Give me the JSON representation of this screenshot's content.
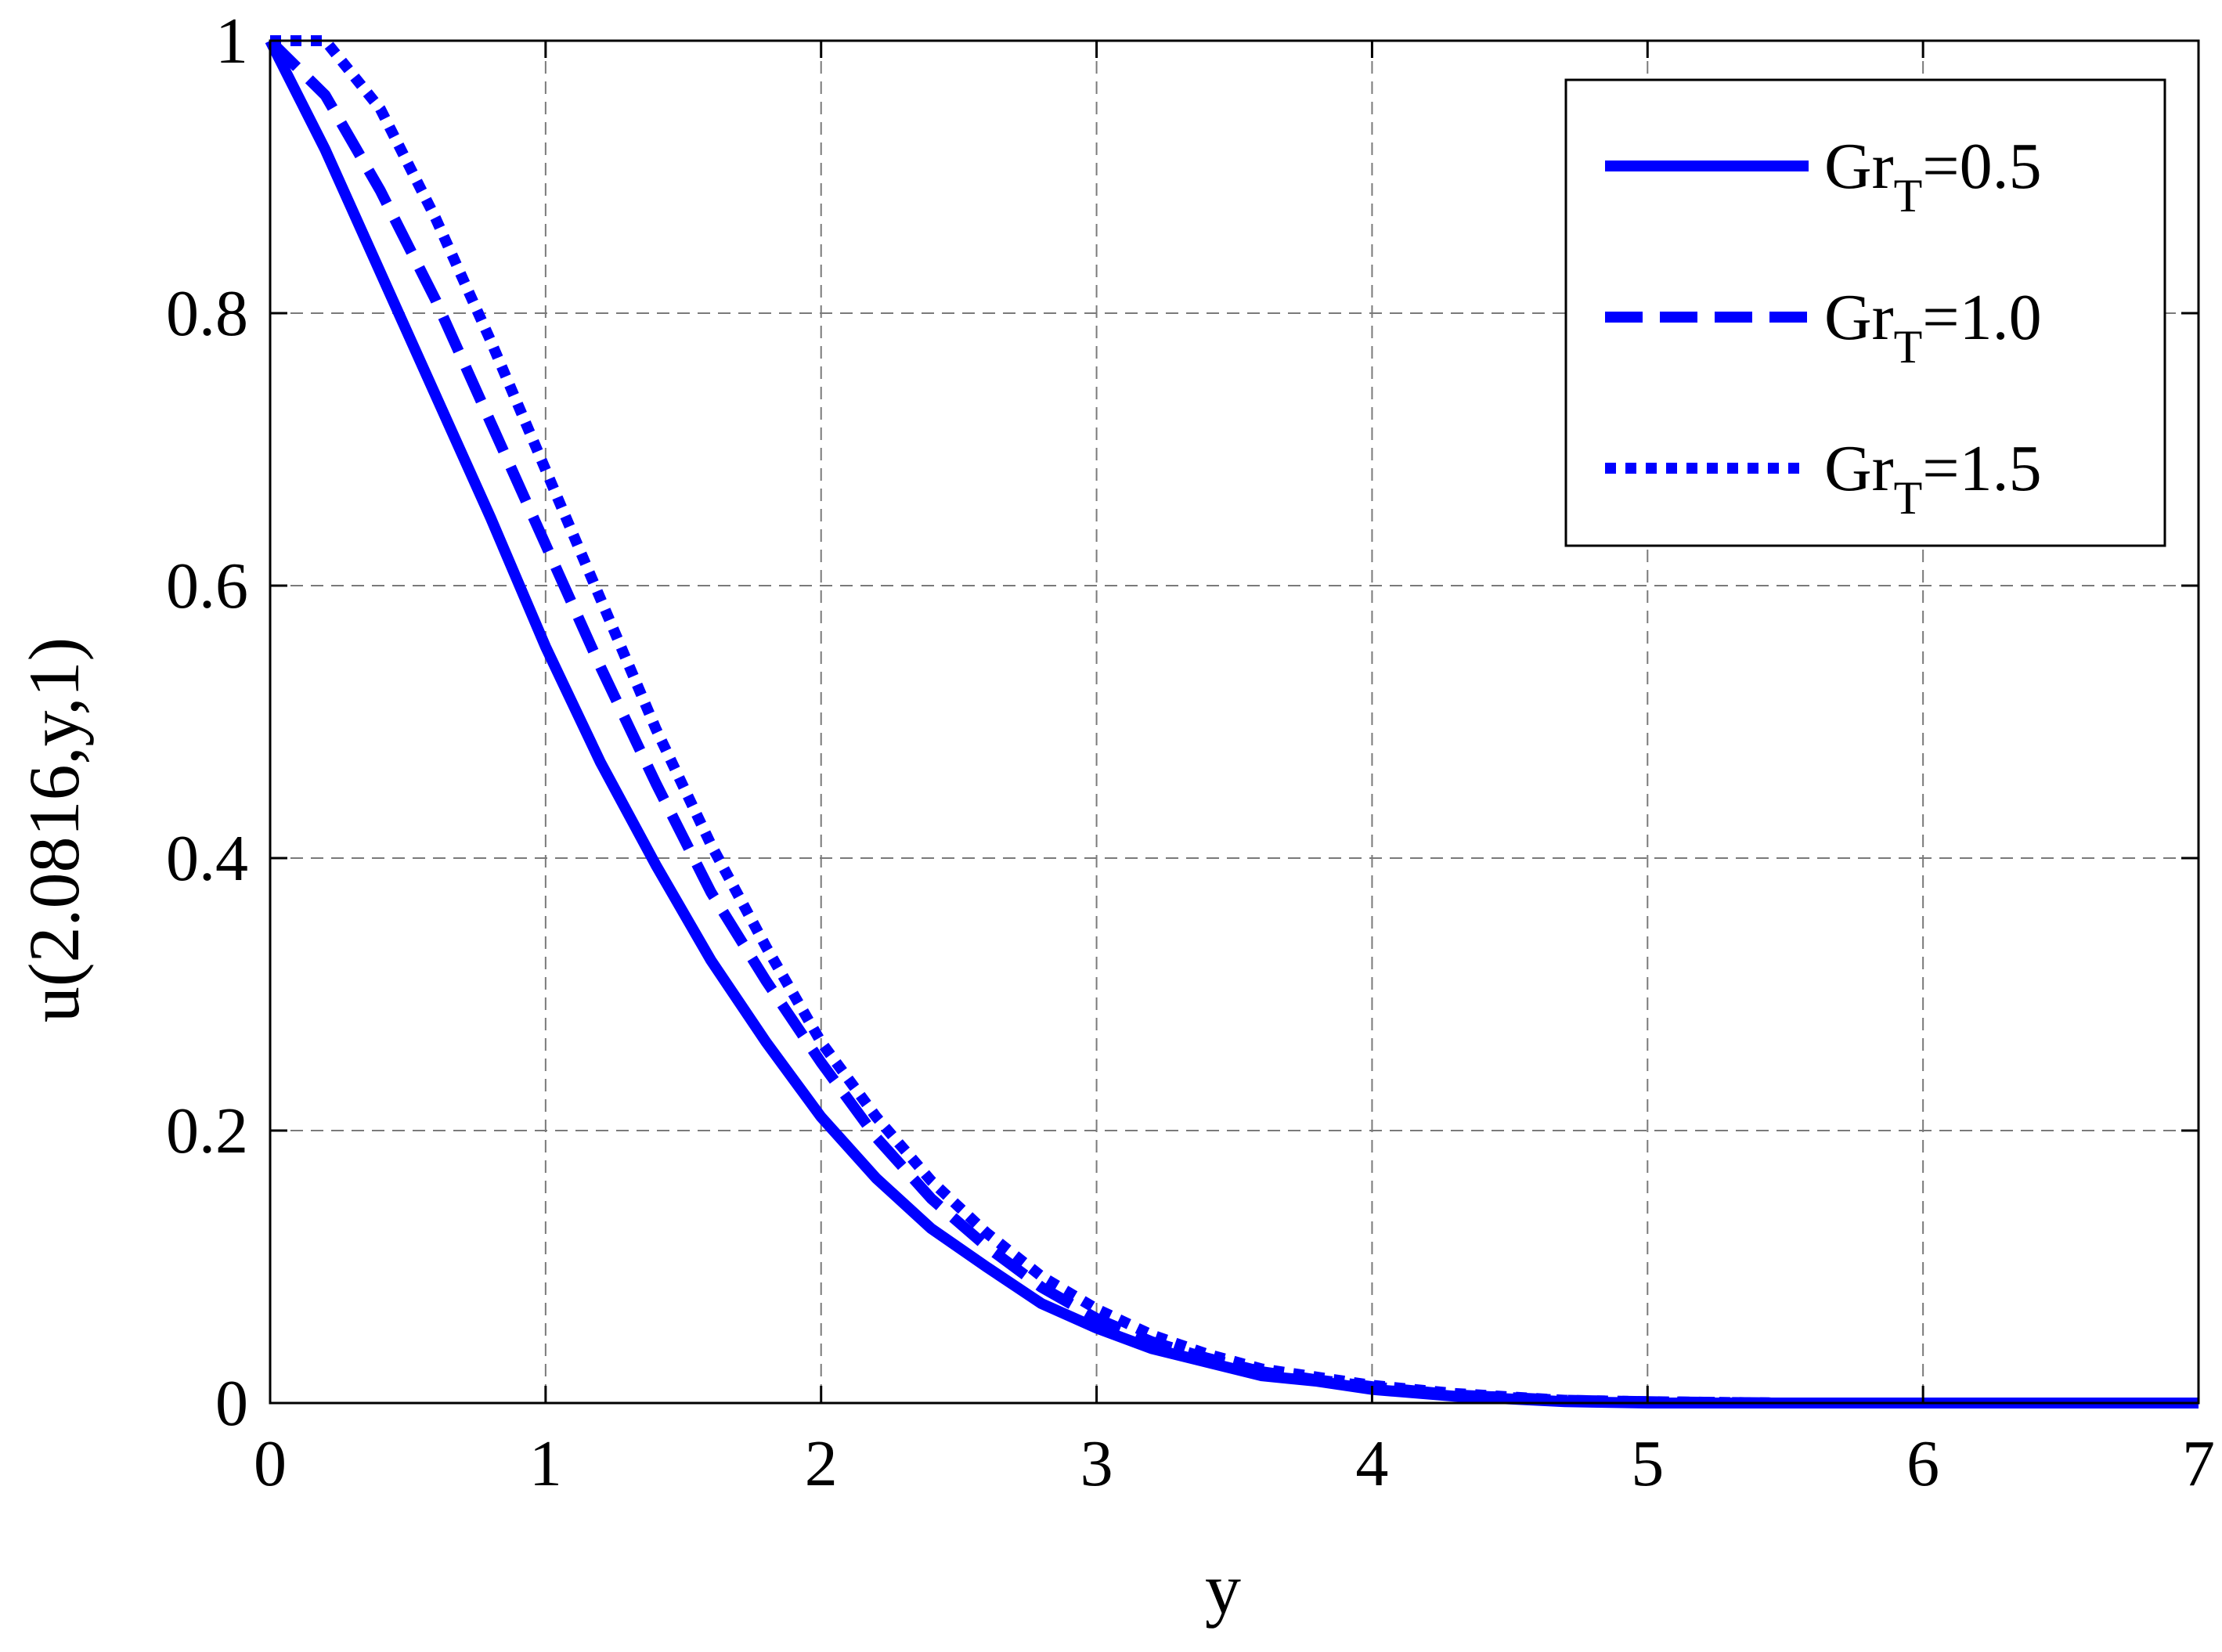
{
  "chart_data": {
    "type": "line",
    "xlabel": "y",
    "ylabel": "u(2.0816,y,1)",
    "xlim": [
      0,
      7
    ],
    "ylim": [
      0,
      1
    ],
    "xticks": [
      0,
      1,
      2,
      3,
      4,
      5,
      6,
      7
    ],
    "xtick_labels": [
      "0",
      "1",
      "2",
      "3",
      "4",
      "5",
      "6",
      "7"
    ],
    "yticks": [
      0,
      0.2,
      0.4,
      0.6,
      0.8,
      1
    ],
    "ytick_labels": [
      "0",
      "0.2",
      "0.4",
      "0.6",
      "0.8",
      "1"
    ],
    "grid": true,
    "legend_position": "top-right",
    "color": "#0000ff",
    "series": [
      {
        "name_base": "Gr",
        "name_sub": "T",
        "name_value": "=0.5",
        "style": "solid",
        "x": [
          0,
          0.2,
          0.4,
          0.6,
          0.8,
          1.0,
          1.2,
          1.4,
          1.6,
          1.8,
          2.0,
          2.2,
          2.4,
          2.6,
          2.8,
          3.0,
          3.2,
          3.4,
          3.6,
          3.8,
          4.0,
          4.3,
          4.7,
          5.0,
          5.5,
          6.0,
          6.5,
          7.0
        ],
        "y": [
          1.0,
          0.92,
          0.83,
          0.74,
          0.65,
          0.555,
          0.47,
          0.395,
          0.325,
          0.265,
          0.21,
          0.165,
          0.128,
          0.1,
          0.073,
          0.055,
          0.04,
          0.03,
          0.02,
          0.016,
          0.01,
          0.005,
          0.001,
          0.0,
          0.0,
          0.0,
          0.0,
          0.0
        ]
      },
      {
        "name_base": "Gr",
        "name_sub": "T",
        "name_value": "=1.0",
        "style": "dashed",
        "x": [
          0,
          0.2,
          0.4,
          0.6,
          0.8,
          1.0,
          1.2,
          1.4,
          1.6,
          1.8,
          2.0,
          2.2,
          2.4,
          2.6,
          2.8,
          3.0,
          3.2,
          3.4,
          3.6,
          3.8,
          4.0,
          4.3,
          4.7,
          5.0,
          5.5,
          6.0,
          6.5,
          7.0
        ],
        "y": [
          1.0,
          0.96,
          0.89,
          0.81,
          0.72,
          0.63,
          0.54,
          0.455,
          0.375,
          0.31,
          0.25,
          0.195,
          0.15,
          0.115,
          0.085,
          0.062,
          0.045,
          0.033,
          0.023,
          0.017,
          0.012,
          0.006,
          0.002,
          0.001,
          0.0,
          0.0,
          0.0,
          0.0
        ]
      },
      {
        "name_base": "Gr",
        "name_sub": "T",
        "name_value": "=1.5",
        "style": "dotted",
        "x": [
          0,
          0.2,
          0.4,
          0.6,
          0.8,
          1.0,
          1.2,
          1.4,
          1.6,
          1.8,
          2.0,
          2.2,
          2.4,
          2.6,
          2.8,
          3.0,
          3.2,
          3.4,
          3.6,
          3.8,
          4.0,
          4.3,
          4.7,
          5.0,
          5.5,
          6.0,
          6.5,
          7.0
        ],
        "y": [
          1.0,
          1.0,
          0.95,
          0.87,
          0.78,
          0.685,
          0.59,
          0.495,
          0.41,
          0.335,
          0.265,
          0.21,
          0.163,
          0.125,
          0.093,
          0.069,
          0.05,
          0.036,
          0.025,
          0.019,
          0.013,
          0.007,
          0.002,
          0.001,
          0.0,
          0.0,
          0.0,
          0.0
        ]
      }
    ]
  }
}
